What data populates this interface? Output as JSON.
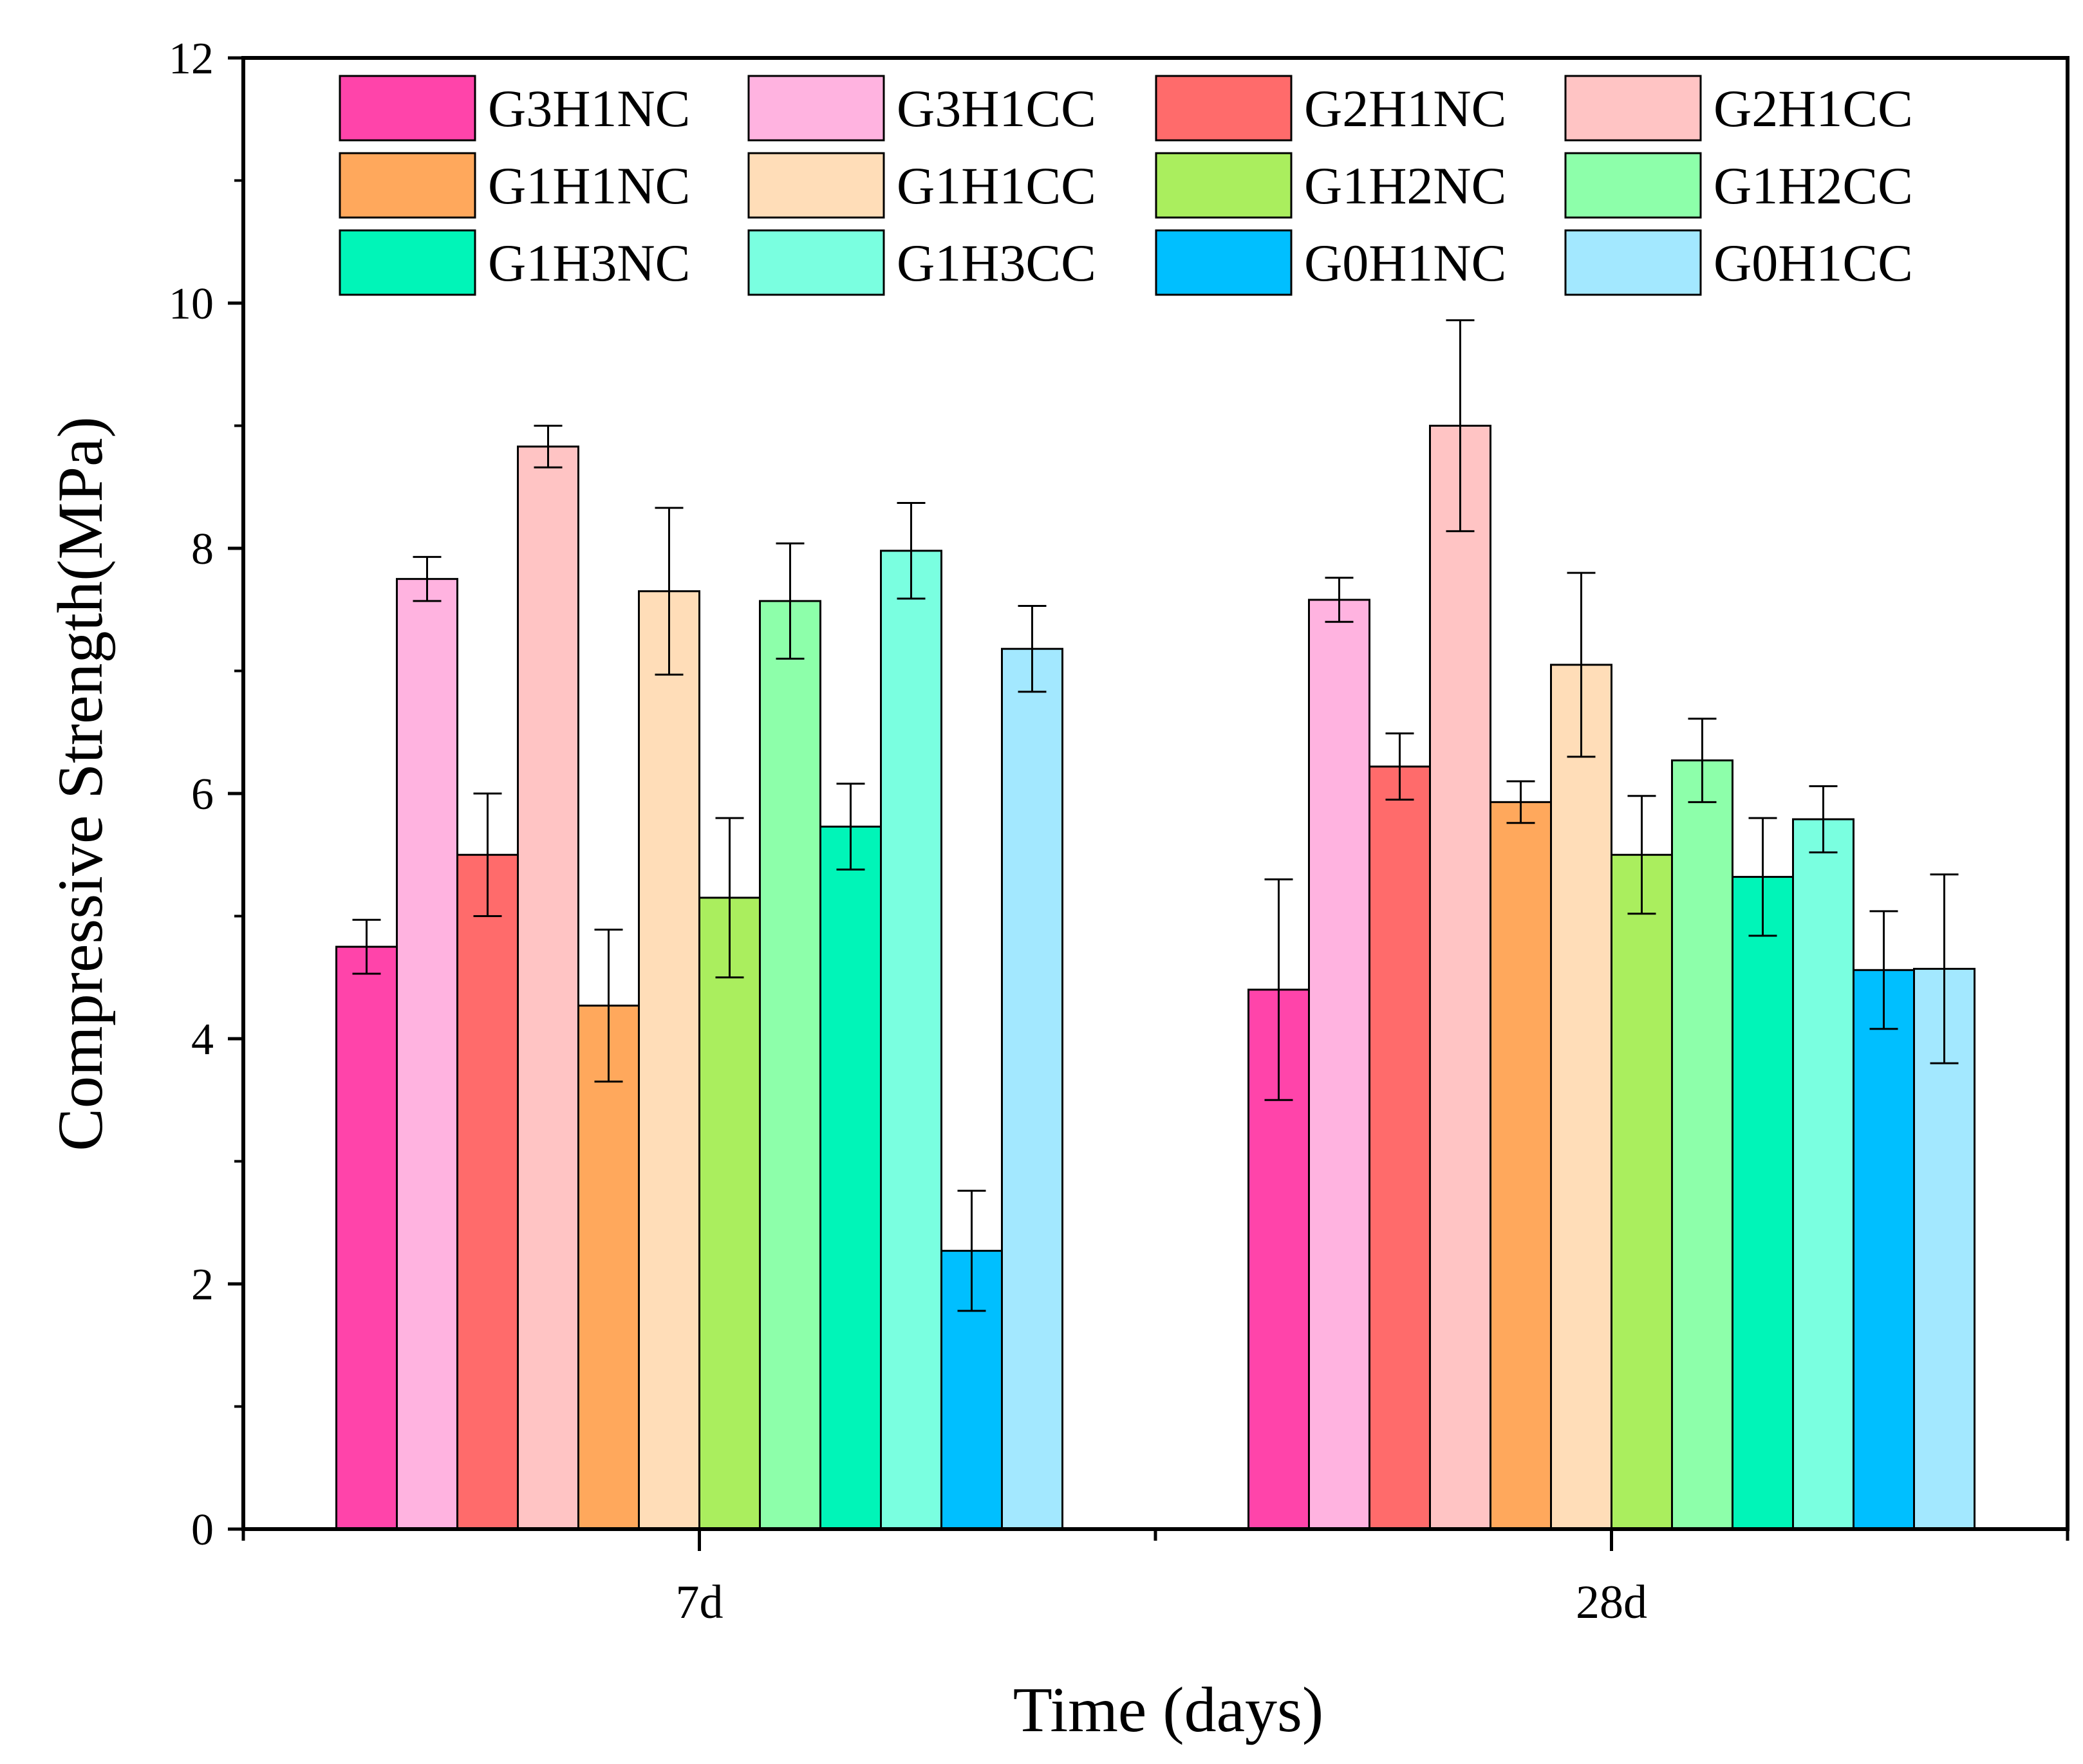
{
  "chart_data": {
    "type": "bar",
    "title": "",
    "xlabel": "Time (days)",
    "ylabel": "Compressive Strength(MPa)",
    "ylim": [
      0,
      12
    ],
    "yticks": [
      "0",
      "2",
      "4",
      "6",
      "8",
      "10",
      "12"
    ],
    "categories": [
      "7d",
      "28d"
    ],
    "legend": {
      "placement": "top",
      "columns": 4
    },
    "grid": false,
    "series": [
      {
        "name": "G3H1NC",
        "color": "#FF44AA",
        "values": [
          4.75,
          4.4
        ],
        "errors": [
          0.22,
          0.9
        ]
      },
      {
        "name": "G3H1CC",
        "color": "#FFB3E0",
        "values": [
          7.75,
          7.58
        ],
        "errors": [
          0.18,
          0.18
        ]
      },
      {
        "name": "G2H1NC",
        "color": "#FF6B6B",
        "values": [
          5.5,
          6.22
        ],
        "errors": [
          0.5,
          0.27
        ]
      },
      {
        "name": "G2H1CC",
        "color": "#FFC4C4",
        "values": [
          8.83,
          9.0
        ],
        "errors": [
          0.17,
          0.86
        ]
      },
      {
        "name": "G1H1NC",
        "color": "#FFA85C",
        "values": [
          4.27,
          5.93
        ],
        "errors": [
          0.62,
          0.17
        ]
      },
      {
        "name": "G1H1CC",
        "color": "#FFDDB8",
        "values": [
          7.65,
          7.05
        ],
        "errors": [
          0.68,
          0.75
        ]
      },
      {
        "name": "G1H2NC",
        "color": "#AAEE5E",
        "values": [
          5.15,
          5.5
        ],
        "errors": [
          0.65,
          0.48
        ]
      },
      {
        "name": "G1H2CC",
        "color": "#8DFFAA",
        "values": [
          7.57,
          6.27
        ],
        "errors": [
          0.47,
          0.34
        ]
      },
      {
        "name": "G1H3NC",
        "color": "#00F5B8",
        "values": [
          5.73,
          5.32
        ],
        "errors": [
          0.35,
          0.48
        ]
      },
      {
        "name": "G1H3CC",
        "color": "#7AFFE0",
        "values": [
          7.98,
          5.79
        ],
        "errors": [
          0.39,
          0.27
        ]
      },
      {
        "name": "G0H1NC",
        "color": "#00BFFF",
        "values": [
          2.27,
          4.56
        ],
        "errors": [
          0.49,
          0.48
        ]
      },
      {
        "name": "G0H1CC",
        "color": "#A3E8FF",
        "values": [
          7.18,
          4.57
        ],
        "errors": [
          0.35,
          0.77
        ]
      }
    ]
  }
}
